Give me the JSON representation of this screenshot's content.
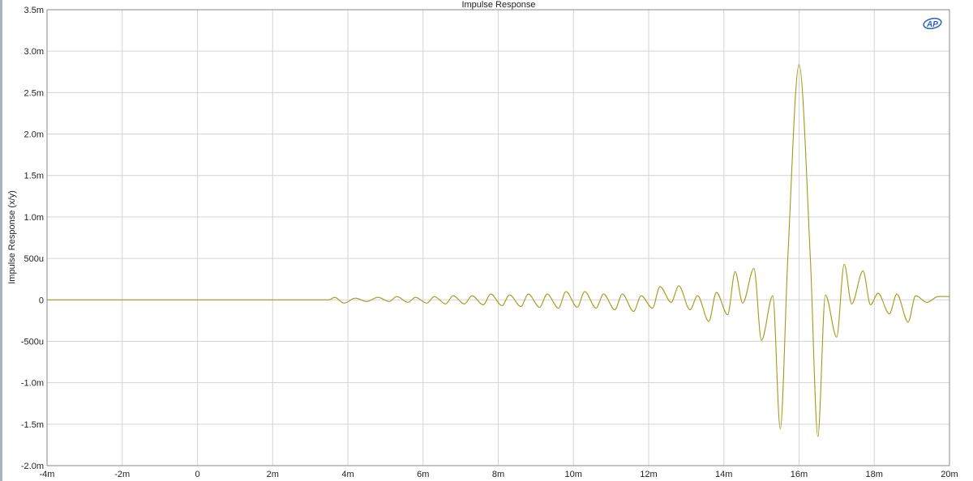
{
  "chart_data": {
    "type": "line",
    "title": "Impulse Response",
    "ylabel": "Impulse Response (x/y)",
    "xlabel": "",
    "xlim": [
      -0.004,
      0.02
    ],
    "ylim": [
      -0.002,
      0.0035
    ],
    "grid": true,
    "x_ticks": [
      {
        "value": -0.004,
        "label": "-4m"
      },
      {
        "value": -0.002,
        "label": "-2m"
      },
      {
        "value": 0,
        "label": "0"
      },
      {
        "value": 0.002,
        "label": "2m"
      },
      {
        "value": 0.004,
        "label": "4m"
      },
      {
        "value": 0.006,
        "label": "6m"
      },
      {
        "value": 0.008,
        "label": "8m"
      },
      {
        "value": 0.01,
        "label": "10m"
      },
      {
        "value": 0.012,
        "label": "12m"
      },
      {
        "value": 0.014,
        "label": "14m"
      },
      {
        "value": 0.016,
        "label": "16m"
      },
      {
        "value": 0.018,
        "label": "18m"
      },
      {
        "value": 0.02,
        "label": "20m"
      }
    ],
    "y_ticks": [
      {
        "value": 0.0035,
        "label": "3.5m"
      },
      {
        "value": 0.003,
        "label": "3.0m"
      },
      {
        "value": 0.0025,
        "label": "2.5m"
      },
      {
        "value": 0.002,
        "label": "2.0m"
      },
      {
        "value": 0.0015,
        "label": "1.5m"
      },
      {
        "value": 0.001,
        "label": "1.0m"
      },
      {
        "value": 0.0005,
        "label": "500u"
      },
      {
        "value": 0,
        "label": "0"
      },
      {
        "value": -0.0005,
        "label": "-500u"
      },
      {
        "value": -0.001,
        "label": "-1.0m"
      },
      {
        "value": -0.0015,
        "label": "-1.5m"
      },
      {
        "value": -0.002,
        "label": "-2.0m"
      }
    ],
    "series": [
      {
        "color": "#a39a16",
        "x": [
          -0.004,
          0.0035,
          0.00365,
          0.0039,
          0.0042,
          0.0045,
          0.0048,
          0.0051,
          0.0053,
          0.0056,
          0.0058,
          0.0061,
          0.0063,
          0.0066,
          0.0068,
          0.0071,
          0.0073,
          0.0076,
          0.0078,
          0.0081,
          0.0083,
          0.0086,
          0.0088,
          0.0091,
          0.0093,
          0.0096,
          0.0098,
          0.0101,
          0.0103,
          0.0106,
          0.0108,
          0.0111,
          0.0113,
          0.0116,
          0.0118,
          0.0121,
          0.0123,
          0.0126,
          0.0128,
          0.0131,
          0.0133,
          0.0136,
          0.0138,
          0.0141,
          0.0143,
          0.0145,
          0.0148,
          0.015,
          0.0153,
          0.0155,
          0.0157,
          0.016,
          0.0163,
          0.0165,
          0.0167,
          0.017,
          0.0172,
          0.0174,
          0.0177,
          0.0179,
          0.0181,
          0.0184,
          0.0186,
          0.0189,
          0.0191,
          0.0194,
          0.0197,
          0.02
        ],
        "y": [
          0,
          0,
          3e-05,
          -4e-05,
          2e-05,
          -2e-05,
          3e-05,
          -2e-05,
          4e-05,
          -3e-05,
          3e-05,
          -4e-05,
          4e-05,
          -5e-05,
          5e-05,
          -5e-05,
          5e-05,
          -6e-05,
          7e-05,
          -7e-05,
          6e-05,
          -8e-05,
          7e-05,
          -9e-05,
          7e-05,
          -0.0001,
          0.0001,
          -9e-05,
          0.0001,
          -0.0001,
          7e-05,
          -0.00012,
          7e-05,
          -0.00014,
          5e-05,
          -0.0001,
          0.00016,
          -3e-05,
          0.00017,
          -0.00012,
          5e-05,
          -0.00026,
          9e-05,
          -0.00018,
          0.00034,
          -4e-05,
          0.00038,
          -0.00049,
          5e-05,
          -0.00156,
          0.0005,
          0.00284,
          0.0005,
          -0.00165,
          6e-05,
          -0.00045,
          0.00043,
          -5e-05,
          0.00035,
          -6e-05,
          8e-05,
          -0.00017,
          7e-05,
          -0.00027,
          5e-05,
          -3e-05,
          4e-05,
          4e-05
        ]
      }
    ]
  },
  "logo": {
    "text": "AP",
    "color": "#2a62c9"
  }
}
